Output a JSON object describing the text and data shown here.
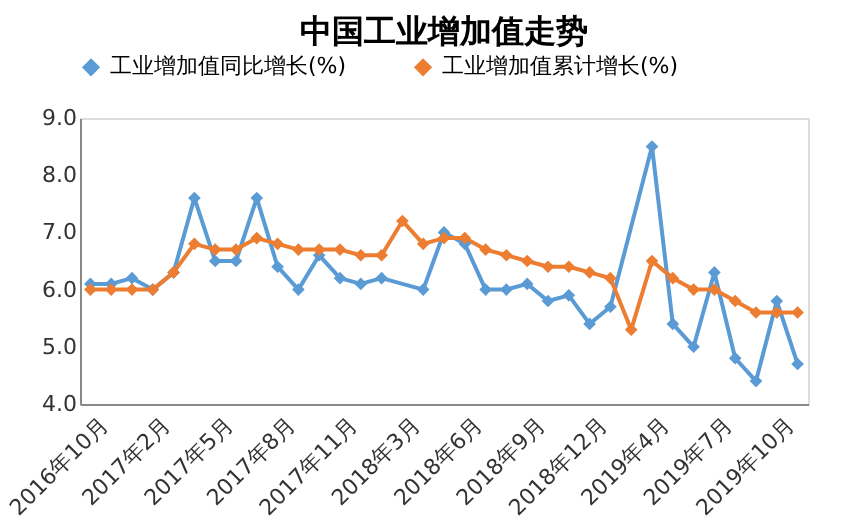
{
  "chart_data": {
    "type": "line",
    "title": "中国工业增加值走势",
    "categories": [
      null,
      "2016年10月",
      null,
      null,
      "2017年2月",
      null,
      null,
      "2017年5月",
      null,
      null,
      "2017年8月",
      null,
      null,
      "2017年11月",
      null,
      null,
      "2018年3月",
      null,
      null,
      "2018年6月",
      null,
      null,
      "2018年9月",
      null,
      null,
      "2018年12月",
      null,
      null,
      "2019年4月",
      null,
      null,
      "2019年7月",
      null,
      null,
      "2019年10月"
    ],
    "series": [
      {
        "name": "工业增加值同比增长(%)",
        "color": "#5b9bd5",
        "values": [
          6.1,
          6.1,
          6.2,
          6.0,
          6.3,
          7.6,
          6.5,
          6.5,
          7.6,
          6.4,
          6.0,
          6.6,
          6.2,
          6.1,
          6.2,
          null,
          6.0,
          7.0,
          6.8,
          6.0,
          6.0,
          6.1,
          5.8,
          5.9,
          5.4,
          5.7,
          null,
          8.5,
          5.4,
          5.0,
          6.3,
          4.8,
          4.4,
          5.8,
          4.7
        ]
      },
      {
        "name": "工业增加值累计增长(%)",
        "color": "#ed7d31",
        "values": [
          6.0,
          6.0,
          6.0,
          6.0,
          6.3,
          6.8,
          6.7,
          6.7,
          6.9,
          6.8,
          6.7,
          6.7,
          6.7,
          6.6,
          6.6,
          7.2,
          6.8,
          6.9,
          6.9,
          6.7,
          6.6,
          6.5,
          6.4,
          6.4,
          6.3,
          6.2,
          5.3,
          6.5,
          6.2,
          6.0,
          6.0,
          5.8,
          5.6,
          5.6,
          5.6
        ]
      }
    ],
    "ylim": [
      4,
      9
    ],
    "yticks": [
      {
        "value": 4,
        "label": "4.0"
      },
      {
        "value": 5,
        "label": "5.0"
      },
      {
        "value": 6,
        "label": "6.0"
      },
      {
        "value": 7,
        "label": "7.0"
      },
      {
        "value": 8,
        "label": "8.0"
      },
      {
        "value": 9,
        "label": "9.0"
      }
    ],
    "grid": false,
    "legend": "top",
    "marker": "diamond",
    "line_style": "solid"
  }
}
